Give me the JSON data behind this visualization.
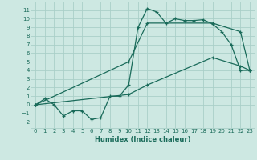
{
  "xlabel": "Humidex (Indice chaleur)",
  "ylabel": "",
  "bg_color": "#cde8e2",
  "grid_color": "#aacfc8",
  "line_color": "#1a6b5a",
  "marker": "+",
  "xlim": [
    -0.5,
    23.5
  ],
  "ylim": [
    -2.7,
    12.0
  ],
  "xticks": [
    0,
    1,
    2,
    3,
    4,
    5,
    6,
    7,
    8,
    9,
    10,
    11,
    12,
    13,
    14,
    15,
    16,
    17,
    18,
    19,
    20,
    21,
    22,
    23
  ],
  "yticks": [
    -2,
    -1,
    0,
    1,
    2,
    3,
    4,
    5,
    6,
    7,
    8,
    9,
    10,
    11
  ],
  "line1_x": [
    0,
    1,
    2,
    3,
    4,
    5,
    6,
    7,
    8,
    9,
    10,
    11,
    12,
    13,
    14,
    15,
    16,
    17,
    18,
    19,
    20,
    21,
    22,
    23
  ],
  "line1_y": [
    0,
    0.7,
    0,
    -1.3,
    -0.7,
    -0.7,
    -1.7,
    -1.5,
    1.0,
    1.0,
    2.3,
    9.0,
    11.2,
    10.8,
    9.5,
    10.0,
    9.8,
    9.8,
    9.9,
    9.4,
    8.5,
    7.0,
    4.0,
    4.0
  ],
  "line2_x": [
    0,
    10,
    12,
    19,
    22,
    23
  ],
  "line2_y": [
    0,
    5.0,
    9.5,
    9.5,
    8.5,
    4.0
  ],
  "line3_x": [
    0,
    10,
    12,
    19,
    22,
    23
  ],
  "line3_y": [
    0,
    1.2,
    2.3,
    5.5,
    4.5,
    4.0
  ]
}
